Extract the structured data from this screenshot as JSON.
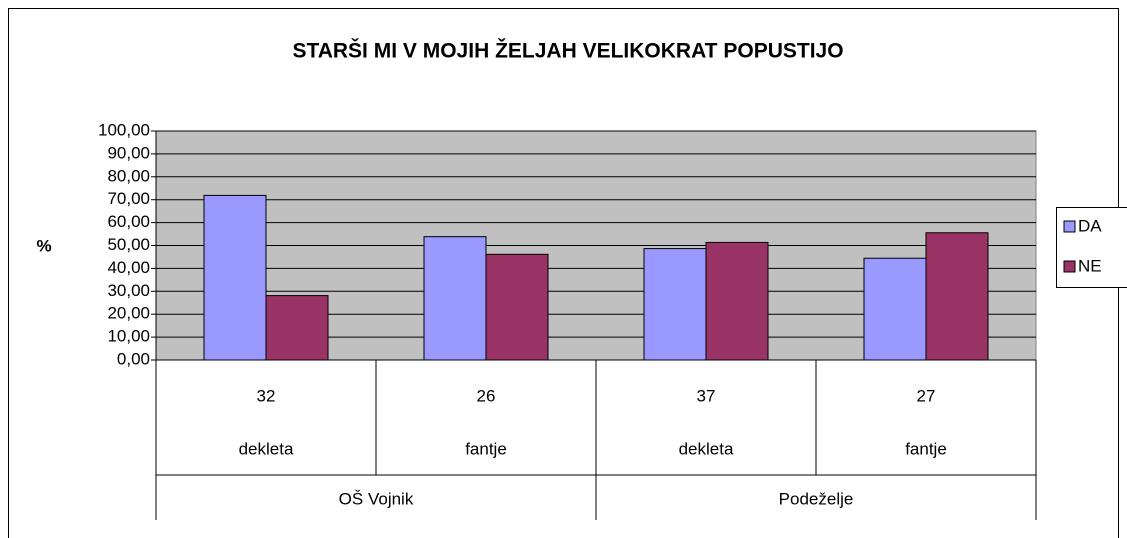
{
  "chart_data": {
    "type": "bar",
    "title": "STARŠI MI V MOJIH ŽELJAH VELIKOKRAT POPUSTIJO",
    "y_label": "%",
    "categories": [
      "32",
      "26",
      "37",
      "27"
    ],
    "subcategories": [
      "dekleta",
      "fantje",
      "dekleta",
      "fantje"
    ],
    "groups": [
      "OŠ Vojnik",
      "Podeželje"
    ],
    "series": [
      {
        "name": "DA",
        "color": "#9999ff",
        "values": [
          71.88,
          53.85,
          48.65,
          44.44
        ]
      },
      {
        "name": "NE",
        "color": "#993366",
        "values": [
          28.13,
          46.15,
          51.35,
          55.56
        ]
      }
    ],
    "ylim": [
      0,
      100
    ],
    "yticks": [
      {
        "value": 0,
        "label": "0,00"
      },
      {
        "value": 10,
        "label": "10,00"
      },
      {
        "value": 20,
        "label": "20,00"
      },
      {
        "value": 30,
        "label": "30,00"
      },
      {
        "value": 40,
        "label": "40,00"
      },
      {
        "value": 50,
        "label": "50,00"
      },
      {
        "value": 60,
        "label": "60,00"
      },
      {
        "value": 70,
        "label": "70,00"
      },
      {
        "value": 80,
        "label": "80,00"
      },
      {
        "value": 90,
        "label": "90,00"
      },
      {
        "value": 100,
        "label": "100,00"
      }
    ],
    "grid": true,
    "plot_background": "#c0c0c0",
    "legend": "right"
  }
}
